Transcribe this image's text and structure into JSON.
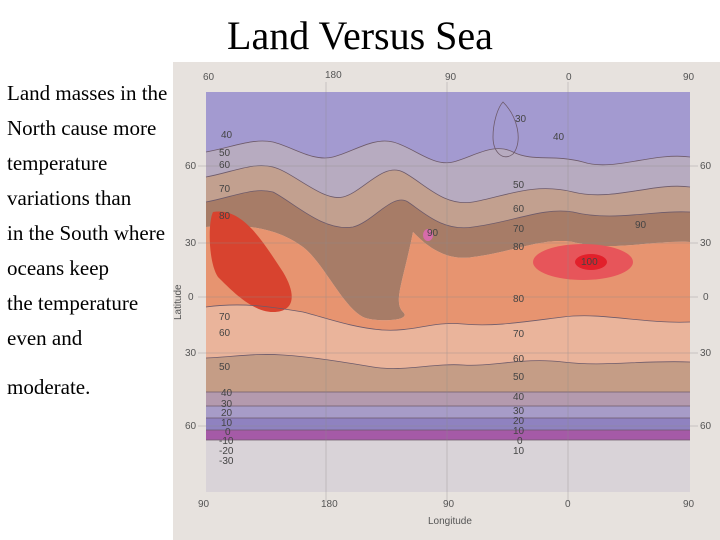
{
  "slide": {
    "title": "Land Versus Sea",
    "body_lines": [
      "Land masses in the",
      "North cause more",
      "temperature",
      "variations than",
      "in the South where",
      "oceans keep",
      "the temperature",
      "even and"
    ],
    "body_last": "moderate."
  },
  "map": {
    "x_label": "Longitude",
    "y_label": "Latitude",
    "top_ticks": [
      "60",
      "180",
      "90",
      "0",
      "90"
    ],
    "bottom_ticks": [
      "90",
      "180",
      "90",
      "0",
      "90"
    ],
    "left_ticks": [
      "60",
      "30",
      "0",
      "30",
      "60"
    ],
    "right_ticks": [
      "60",
      "30",
      "0",
      "30",
      "60"
    ],
    "isotherms_left": [
      "40",
      "50",
      "60",
      "70",
      "80",
      "70",
      "60",
      "50",
      "40",
      "30",
      "20",
      "10",
      "0",
      "-10",
      "-20",
      "-30"
    ],
    "isotherms_mid": [
      "30",
      "40",
      "50",
      "60",
      "70",
      "80",
      "80",
      "70",
      "60",
      "50",
      "40",
      "30",
      "20",
      "10",
      "0",
      "10"
    ],
    "hot_spots": [
      "90",
      "90",
      "100"
    ]
  }
}
